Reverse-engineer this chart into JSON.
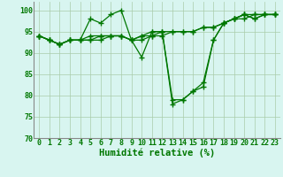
{
  "series": [
    {
      "x": [
        0,
        1,
        2,
        3,
        4,
        5,
        6,
        7,
        8,
        9,
        10,
        11,
        12,
        13,
        14,
        15,
        16,
        17,
        18,
        19,
        20,
        21,
        22,
        23
      ],
      "y": [
        94,
        93,
        92,
        93,
        93,
        98,
        97,
        99,
        100,
        93,
        89,
        95,
        95,
        79,
        79,
        81,
        82,
        93,
        97,
        98,
        99,
        98,
        99,
        99
      ]
    },
    {
      "x": [
        0,
        1,
        2,
        3,
        4,
        5,
        6,
        7,
        8,
        9,
        10,
        11,
        12,
        13,
        14,
        15,
        16,
        17,
        18,
        19,
        20,
        21,
        22,
        23
      ],
      "y": [
        94,
        93,
        92,
        93,
        93,
        93,
        93,
        94,
        94,
        93,
        94,
        95,
        95,
        95,
        95,
        95,
        96,
        96,
        97,
        98,
        99,
        99,
        99,
        99
      ]
    },
    {
      "x": [
        0,
        1,
        2,
        3,
        4,
        5,
        6,
        7,
        8,
        9,
        10,
        11,
        12,
        13,
        14,
        15,
        16,
        17,
        18,
        19,
        20,
        21,
        22,
        23
      ],
      "y": [
        94,
        93,
        92,
        93,
        93,
        94,
        94,
        94,
        94,
        93,
        94,
        94,
        94,
        95,
        95,
        95,
        96,
        96,
        97,
        98,
        98,
        99,
        99,
        99
      ]
    },
    {
      "x": [
        0,
        1,
        2,
        3,
        4,
        5,
        6,
        7,
        8,
        9,
        10,
        11,
        12,
        13,
        14,
        15,
        16,
        17,
        18,
        19,
        20,
        21,
        22,
        23
      ],
      "y": [
        94,
        93,
        92,
        93,
        93,
        93,
        94,
        94,
        94,
        93,
        93,
        94,
        95,
        78,
        79,
        81,
        83,
        93,
        97,
        98,
        99,
        98,
        99,
        99
      ]
    }
  ],
  "line_color": "#007700",
  "marker": "+",
  "marker_size": 4,
  "line_width": 0.9,
  "bg_color": "#d8f5f0",
  "grid_color": "#aaccaa",
  "xlabel": "Humidité relative (%)",
  "xlabel_color": "#007700",
  "xlabel_fontsize": 7.5,
  "tick_color": "#007700",
  "tick_fontsize": 6.0,
  "ylim": [
    70,
    102
  ],
  "yticks": [
    70,
    75,
    80,
    85,
    90,
    95,
    100
  ],
  "xlim": [
    -0.5,
    23.5
  ],
  "xticks": [
    0,
    1,
    2,
    3,
    4,
    5,
    6,
    7,
    8,
    9,
    10,
    11,
    12,
    13,
    14,
    15,
    16,
    17,
    18,
    19,
    20,
    21,
    22,
    23
  ]
}
